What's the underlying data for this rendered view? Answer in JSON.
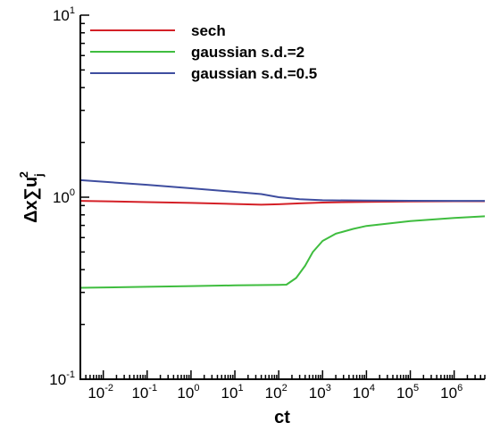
{
  "chart_data": {
    "type": "line",
    "xlabel": "ct",
    "ylabel": "Δx∑u_j^2",
    "ylabel_parts": {
      "base": "Δx∑u",
      "sub": "j",
      "sup": "2"
    },
    "xscale": "log",
    "yscale": "log",
    "xlim": [
      0.003,
      5000000
    ],
    "ylim": [
      0.1,
      10
    ],
    "grid": false,
    "legend_position": "top-left",
    "x_ticks": [
      {
        "value": 0.01,
        "base": "10",
        "exp": "-2"
      },
      {
        "value": 0.1,
        "base": "10",
        "exp": "-1"
      },
      {
        "value": 1,
        "base": "10",
        "exp": "0"
      },
      {
        "value": 10,
        "base": "10",
        "exp": "1"
      },
      {
        "value": 100,
        "base": "10",
        "exp": "2"
      },
      {
        "value": 1000,
        "base": "10",
        "exp": "3"
      },
      {
        "value": 10000,
        "base": "10",
        "exp": "4"
      },
      {
        "value": 100000,
        "base": "10",
        "exp": "5"
      },
      {
        "value": 1000000,
        "base": "10",
        "exp": "6"
      }
    ],
    "y_ticks": [
      {
        "value": 0.1,
        "base": "10",
        "exp": "-1"
      },
      {
        "value": 1,
        "base": "10",
        "exp": "0"
      },
      {
        "value": 10,
        "base": "10",
        "exp": "1"
      }
    ],
    "series": [
      {
        "name": "sech",
        "color": "#d42027",
        "x": [
          0.003,
          0.1,
          1,
          10,
          40,
          100,
          300,
          1000,
          10000,
          100000,
          1000000,
          5000000
        ],
        "y": [
          0.955,
          0.94,
          0.93,
          0.918,
          0.91,
          0.915,
          0.925,
          0.935,
          0.943,
          0.948,
          0.95,
          0.95
        ]
      },
      {
        "name": "gaussian s.d.=2",
        "color": "#3fbd3f",
        "x": [
          0.003,
          0.1,
          1,
          10,
          100,
          150,
          250,
          400,
          600,
          1000,
          2000,
          5000,
          10000,
          100000,
          1000000,
          5000000
        ],
        "y": [
          0.318,
          0.322,
          0.325,
          0.328,
          0.33,
          0.331,
          0.36,
          0.42,
          0.5,
          0.575,
          0.63,
          0.67,
          0.695,
          0.74,
          0.77,
          0.785
        ]
      },
      {
        "name": "gaussian s.d.=0.5",
        "color": "#3e4d9f",
        "x": [
          0.003,
          0.1,
          1,
          10,
          40,
          100,
          300,
          1000,
          10000,
          100000,
          1000000,
          5000000
        ],
        "y": [
          1.24,
          1.17,
          1.12,
          1.07,
          1.04,
          1.0,
          0.975,
          0.962,
          0.958,
          0.956,
          0.955,
          0.955
        ]
      }
    ]
  }
}
